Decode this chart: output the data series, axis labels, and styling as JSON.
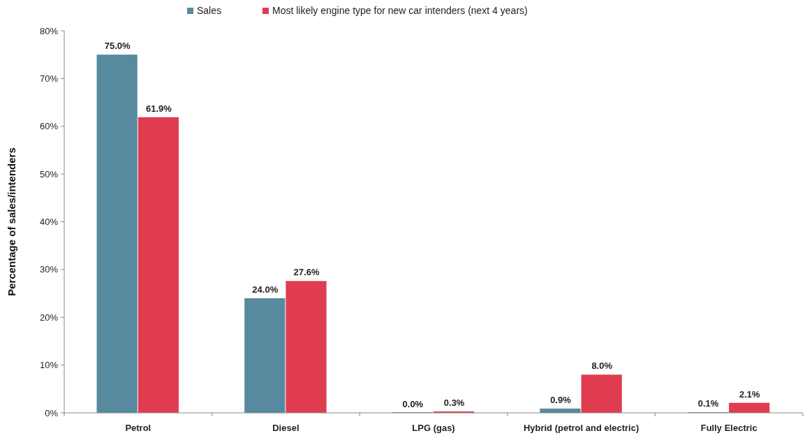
{
  "chart_data": {
    "type": "bar",
    "ylabel": "Percentage of sales/intenders",
    "categories": [
      "Petrol",
      "Diesel",
      "LPG (gas)",
      "Hybrid (petrol and electric)",
      "Fully Electric"
    ],
    "series": [
      {
        "name": "Sales",
        "color": "#578a9e",
        "values": [
          75.0,
          24.0,
          0.0,
          0.9,
          0.1
        ],
        "value_labels": [
          "75.0%",
          "24.0%",
          "0.0%",
          "0.9%",
          "0.1%"
        ]
      },
      {
        "name": "Most likely engine type for new car intenders (next 4 years)",
        "color": "#e03c50",
        "values": [
          61.9,
          27.6,
          0.3,
          8.0,
          2.1
        ],
        "value_labels": [
          "61.9%",
          "27.6%",
          "0.3%",
          "8.0%",
          "2.1%"
        ]
      }
    ],
    "ylim": [
      0,
      80
    ],
    "yticks": [
      {
        "value": 0,
        "label": "0%"
      },
      {
        "value": 10,
        "label": "10%"
      },
      {
        "value": 20,
        "label": "20%"
      },
      {
        "value": 30,
        "label": "30%"
      },
      {
        "value": 40,
        "label": "40%"
      },
      {
        "value": 50,
        "label": "50%"
      },
      {
        "value": 60,
        "label": "60%"
      },
      {
        "value": 70,
        "label": "70%"
      },
      {
        "value": 80,
        "label": "80%"
      }
    ],
    "grid": false,
    "legend": "top"
  }
}
